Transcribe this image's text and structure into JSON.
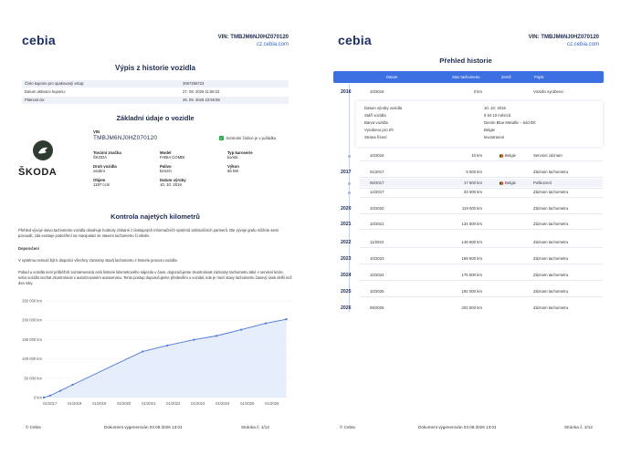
{
  "pages": [
    {
      "logo": "cebia",
      "vin_header": "VIN: TMBJM6NJ0HZ070120",
      "url": "cz.cebia.com",
      "title": "Výpis z historie vozidla",
      "coupon_rows": [
        {
          "label": "Číslo kuponu pro opakovaný vstup:",
          "value": "3067256723"
        },
        {
          "label": "Datum aktivace kuponu:",
          "value": "27. 08. 2026 11:58:22"
        },
        {
          "label": "Platnost do:",
          "value": "26. 09. 2026 23:59:59"
        }
      ],
      "basic_title": "Základní údaje o vozidle",
      "brand_text": "ŠKODA",
      "vin_label": "VIN",
      "vin_value": "TMBJM6NJ0HZ070120",
      "check_text": "kontrolní číslice je v pořádku",
      "fields": [
        {
          "label": "Tovární značka",
          "value": "ŠKODA"
        },
        {
          "label": "Model",
          "value": "FABIA COMBI"
        },
        {
          "label": "Typ karoserie",
          "value": "kombi"
        },
        {
          "label": "Druh vozidla",
          "value": "osobní"
        },
        {
          "label": "Palivo",
          "value": "benzín"
        },
        {
          "label": "Výkon",
          "value": "66 kW"
        },
        {
          "label": "Objem",
          "value": "1197 ccm"
        },
        {
          "label": "Datum výroby",
          "value": "10. 10. 2016"
        }
      ],
      "odo_title": "Kontrola najetých kilometrů",
      "para1": "Přehled vývoje stavu tachometru vozidla obsahuje hodnoty získané z dostupných informačních systémů zahraničních partnerů. Dle vývoje grafu můžete sami posoudit, zda existuje podezření na manipulaci se stavem tachometru či nikoliv.",
      "recommend_label": "Doporučení",
      "para2": "V systému nemusí být k dispozici všechny záznamy stavů tachometru z historie provozu vozidla.",
      "para3": "Pokud u vozidla není průběžně zaznamenaná celá historie kilometrového nájezdu v čase, doporučujeme zkontrolovat záznamy tachometru také v servisní knize, nebo vozidlo nechat zkontrolovat v autorizovaném autoservisu. Tento postup doporučujeme především u vozidel, kde je mezi stavy tachometru časový úsek delší než dva roky.",
      "footer_left": "© Cebia",
      "footer_mid": "Dokument vygenerován 03.09.2026 13:01",
      "footer_right": "Stránka č. 1/12"
    },
    {
      "logo": "cebia",
      "vin_header": "VIN: TMBJM6NJ0HZ070120",
      "url": "cz.cebia.com",
      "title": "Přehled historie",
      "columns": [
        "Datum",
        "Stav tachometru",
        "Země",
        "Popis"
      ],
      "detail": [
        {
          "label": "Datum výroby vozidla",
          "value": "10. 10. 2016"
        },
        {
          "label": "Stáří vozidla",
          "value": "9 let 10 měsíců"
        },
        {
          "label": "Barva vozidla",
          "value": "Denim Blue Metallic – kód D0"
        },
        {
          "label": "Vyrobeno pro trh",
          "value": "Belgie"
        },
        {
          "label": "Strana řízení",
          "value": "levostranné"
        }
      ],
      "rows": [
        {
          "year": "2016",
          "date": "10/2016",
          "km": "0 km",
          "country": "",
          "desc": "Vozidlo vyrobeno"
        },
        {
          "year": "",
          "date": "10/2016",
          "km": "10 km",
          "country": "Belgie",
          "desc": "Servisní záznam"
        },
        {
          "year": "2017",
          "date": "01/2017",
          "km": "5 000 km",
          "country": "",
          "desc": "Záznam tachometru"
        },
        {
          "year": "",
          "date": "06/2017",
          "km": "17 500 km",
          "country": "Belgie",
          "desc": "Poškození"
        },
        {
          "year": "",
          "date": "12/2017",
          "km": "33 000 km",
          "country": "",
          "desc": "Záznam tachometru"
        },
        {
          "year": "2020",
          "date": "10/2020",
          "km": "119 000 km",
          "country": "",
          "desc": "Záznam tachometru"
        },
        {
          "year": "2021",
          "date": "10/2021",
          "km": "134 500 km",
          "country": "",
          "desc": "Záznam tachometru"
        },
        {
          "year": "2022",
          "date": "11/2022",
          "km": "149 500 km",
          "country": "",
          "desc": "Záznam tachometru"
        },
        {
          "year": "2023",
          "date": "10/2023",
          "km": "159 500 km",
          "country": "",
          "desc": "Záznam tachometru"
        },
        {
          "year": "2024",
          "date": "10/2024",
          "km": "175 500 km",
          "country": "",
          "desc": "Záznam tachometru"
        },
        {
          "year": "2025",
          "date": "10/2025",
          "km": "192 000 km",
          "country": "",
          "desc": "Záznam tachometru"
        },
        {
          "year": "2026",
          "date": "08/2026",
          "km": "202 500 km",
          "country": "",
          "desc": "Záznam tachometru"
        }
      ],
      "footer_left": "© Cebia",
      "footer_mid": "Dokument vygenerován 03.09.2026 13:01",
      "footer_right": "Stránka č. 2/12"
    }
  ],
  "chart_data": {
    "type": "area",
    "x": [
      "01/2017",
      "01/2018",
      "01/2019",
      "01/2020",
      "01/2021",
      "01/2022",
      "01/2023",
      "01/2024",
      "01/2025",
      "01/2026"
    ],
    "ytick_labels": [
      "0 km",
      "50 000 km",
      "100 000 km",
      "150 000 km",
      "200 000 km",
      "250 000 km"
    ],
    "ylim": [
      0,
      250000
    ],
    "points": [
      {
        "x": "2016-10",
        "y": 0
      },
      {
        "x": "2016-10",
        "y": 10
      },
      {
        "x": "2017-01",
        "y": 5000
      },
      {
        "x": "2017-06",
        "y": 17500
      },
      {
        "x": "2017-12",
        "y": 33000
      },
      {
        "x": "2020-10",
        "y": 119000
      },
      {
        "x": "2021-10",
        "y": 134500
      },
      {
        "x": "2022-11",
        "y": 149500
      },
      {
        "x": "2023-10",
        "y": 159500
      },
      {
        "x": "2024-10",
        "y": 175500
      },
      {
        "x": "2025-10",
        "y": 192000
      },
      {
        "x": "2026-08",
        "y": 202500
      }
    ],
    "colors": {
      "line": "#4c78d8",
      "fill": "#dbe6fa"
    }
  }
}
